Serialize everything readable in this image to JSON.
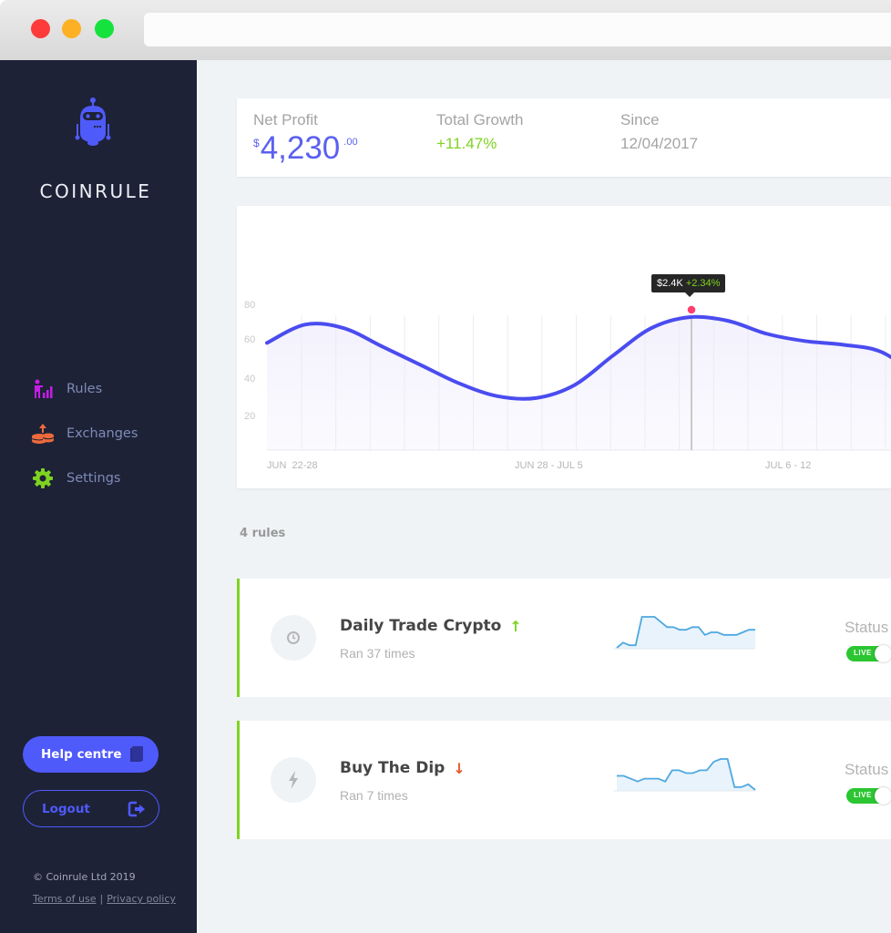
{
  "window": {
    "controls": [
      "close",
      "minimize",
      "maximize"
    ],
    "url": ""
  },
  "sidebar": {
    "brand": "COINRULE",
    "logo_icon": "robot-icon",
    "nav": [
      {
        "label": "Rules",
        "icon": "rules-chart-icon",
        "color": "#c81ce6"
      },
      {
        "label": "Exchanges",
        "icon": "coins-exchange-icon",
        "color": "#ee6a3c"
      },
      {
        "label": "Settings",
        "icon": "gear-icon",
        "color": "#7ed321"
      }
    ],
    "help_label": "Help centre",
    "logout_label": "Logout",
    "copyright": "© Coinrule Ltd 2019",
    "terms": "Terms of use",
    "separator": "|",
    "privacy": "Privacy policy"
  },
  "stats": {
    "net_profit": {
      "label": "Net Profit",
      "currency": "$",
      "integer": "4,230",
      "decimal": ".00"
    },
    "total_growth": {
      "label": "Total Growth",
      "value": "+11.47%"
    },
    "since": {
      "label": "Since",
      "value": "12/04/2017"
    }
  },
  "chart": {
    "tooltip_value": "$2.4K",
    "tooltip_pct": "+2.34%",
    "y_ticks": [
      "80",
      "60",
      "40",
      "20"
    ],
    "x_ticks": [
      "JUN  22-28",
      "JUN 28 - JUL 5",
      "JUL 6 - 12"
    ]
  },
  "chart_data": {
    "type": "area",
    "title": "",
    "xlabel": "",
    "ylabel": "",
    "x_tick_labels": [
      "JUN  22-28",
      "JUN 28 - JUL 5",
      "JUL 6 - 12"
    ],
    "y_ticks": [
      20,
      40,
      60,
      80
    ],
    "ylim": [
      0,
      90
    ],
    "grid": "vertical",
    "series": [
      {
        "name": "Net Profit",
        "color": "#4a4cf0",
        "x_index": [
          0,
          1,
          2,
          3,
          4,
          5,
          6,
          7,
          8,
          9,
          10,
          11,
          12,
          13,
          14,
          15,
          16,
          17
        ],
        "values": [
          60,
          70,
          68,
          58,
          48,
          38,
          31,
          30,
          37,
          53,
          68,
          74,
          72,
          65,
          61,
          59,
          55,
          41
        ]
      }
    ],
    "highlight": {
      "index": 11,
      "value": 74,
      "label": "$2.4K",
      "change": "+2.34%"
    }
  },
  "rules": {
    "count_label": "4 rules",
    "items": [
      {
        "title": "Daily Trade Crypto",
        "trend": "up",
        "trend_glyph": "↑",
        "trend_color": "#7ed321",
        "runs": "Ran 37 times",
        "icon": "clock-icon",
        "status_label": "Status",
        "status": "LIVE",
        "spark": [
          0,
          2,
          1,
          1,
          12,
          12,
          12,
          10,
          8,
          8,
          7,
          7,
          8,
          8,
          5,
          6,
          6,
          5,
          5,
          5,
          6,
          7,
          7
        ]
      },
      {
        "title": "Buy The Dip",
        "trend": "down",
        "trend_glyph": "↓",
        "trend_color": "#e8572a",
        "runs": "Ran 7 times",
        "icon": "lightning-icon",
        "status_label": "Status",
        "status": "LIVE",
        "spark": [
          5,
          5,
          4,
          3,
          4,
          4,
          4,
          3,
          7,
          7,
          6,
          6,
          7,
          7,
          10,
          11,
          11,
          1,
          1,
          2,
          0
        ]
      }
    ]
  }
}
